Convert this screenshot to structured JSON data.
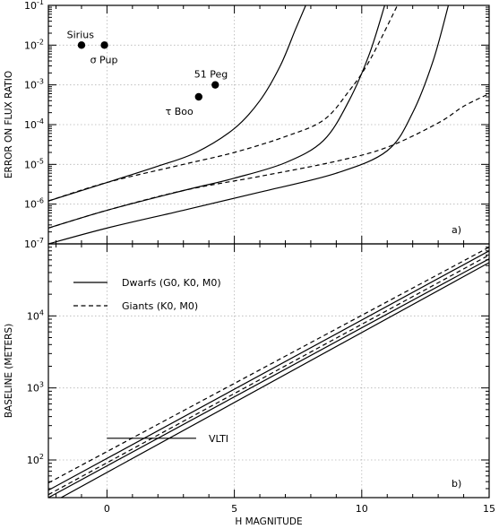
{
  "chart_data": [
    {
      "id": "a",
      "type": "line",
      "panel_label": "a)",
      "ylabel": "ERROR ON FLUX RATIO",
      "xlabel": "",
      "xlim": [
        -2.3,
        15
      ],
      "ylim": [
        1e-07,
        0.1
      ],
      "yscale": "log",
      "grid": true,
      "y_ticks": [
        {
          "value": 1e-07,
          "label": "10",
          "exp": "-7"
        },
        {
          "value": 1e-06,
          "label": "10",
          "exp": "-6"
        },
        {
          "value": 1e-05,
          "label": "10",
          "exp": "-5"
        },
        {
          "value": 0.0001,
          "label": "10",
          "exp": "-4"
        },
        {
          "value": 0.001,
          "label": "10",
          "exp": "-3"
        },
        {
          "value": 0.01,
          "label": "10",
          "exp": "-2"
        },
        {
          "value": 0.1,
          "label": "10",
          "exp": "-1"
        }
      ],
      "series": [
        {
          "style": "solid",
          "x": [
            -2.3,
            0,
            2,
            3.5,
            5,
            6,
            6.8,
            7.4,
            7.8
          ],
          "y": [
            1.2e-06,
            3.5e-06,
            9e-06,
            2e-05,
            8e-05,
            0.0004,
            0.003,
            0.025,
            0.1
          ]
        },
        {
          "style": "solid",
          "x": [
            -2.3,
            0,
            3,
            5,
            7,
            8.5,
            9.5,
            10.3,
            10.9
          ],
          "y": [
            2.5e-07,
            7e-07,
            2.2e-06,
            4.5e-06,
            1.1e-05,
            4e-05,
            0.0004,
            0.006,
            0.1
          ]
        },
        {
          "style": "solid",
          "x": [
            -2.3,
            0,
            3,
            6,
            9,
            11,
            12,
            12.8,
            13.4
          ],
          "y": [
            1e-07,
            2.5e-07,
            7e-07,
            2e-06,
            6e-06,
            2.2e-05,
            0.0002,
            0.004,
            0.1
          ]
        },
        {
          "style": "dashed",
          "x": [
            -2.3,
            0,
            3,
            5,
            7,
            8.5,
            9.5,
            10.3,
            11.4
          ],
          "y": [
            1.2e-06,
            3.5e-06,
            1e-05,
            2e-05,
            5e-05,
            0.00013,
            0.0007,
            0.004,
            0.1
          ]
        },
        {
          "style": "dashed",
          "x": [
            -2.3,
            0,
            3,
            6,
            9,
            11,
            13,
            14,
            15
          ],
          "y": [
            2.5e-07,
            7e-07,
            2.2e-06,
            5e-06,
            1.2e-05,
            2.7e-05,
            0.00011,
            0.00029,
            0.0006
          ]
        }
      ],
      "points": [
        {
          "label": "Sirius",
          "x": -1.0,
          "y": 0.01,
          "label_pos": "above-left"
        },
        {
          "label": "σ Pup",
          "x": -0.1,
          "y": 0.01,
          "label_pos": "below-right"
        },
        {
          "label": "51 Peg",
          "x": 4.25,
          "y": 0.001,
          "label_pos": "above-left"
        },
        {
          "label": "τ Boo",
          "x": 3.6,
          "y": 0.0005,
          "label_pos": "below-left"
        }
      ]
    },
    {
      "id": "b",
      "type": "line",
      "panel_label": "b)",
      "ylabel": "BASELINE (METERS)",
      "xlabel": "H MAGNITUDE",
      "xlim": [
        -2.3,
        15
      ],
      "ylim": [
        30,
        100000
      ],
      "yscale": "log",
      "grid": true,
      "x_ticks": [
        0,
        5,
        10,
        15
      ],
      "y_ticks": [
        {
          "value": 100,
          "label": "10",
          "exp": "2"
        },
        {
          "value": 1000,
          "label": "10",
          "exp": "3"
        },
        {
          "value": 10000,
          "label": "10",
          "exp": "4"
        }
      ],
      "legend": {
        "placement": "top-left",
        "entries": [
          {
            "style": "solid",
            "label": "Dwarfs (G0, K0, M0)"
          },
          {
            "style": "dashed",
            "label": "Giants (K0, M0)"
          }
        ]
      },
      "series": [
        {
          "style": "dashed",
          "x": [
            -2.3,
            15
          ],
          "y": [
            48,
            90000
          ]
        },
        {
          "style": "dashed",
          "x": [
            -2.3,
            15
          ],
          "y": [
            33,
            70000
          ]
        },
        {
          "style": "solid",
          "x": [
            -2.3,
            15
          ],
          "y": [
            38,
            80000
          ]
        },
        {
          "style": "solid",
          "x": [
            -2.3,
            15
          ],
          "y": [
            30,
            62000
          ]
        },
        {
          "style": "solid",
          "x": [
            -1.8,
            15
          ],
          "y": [
            30,
            55000
          ]
        }
      ],
      "reference_line": {
        "label": "VLTI",
        "y": 200,
        "x_range": [
          0,
          3.5
        ]
      }
    }
  ]
}
